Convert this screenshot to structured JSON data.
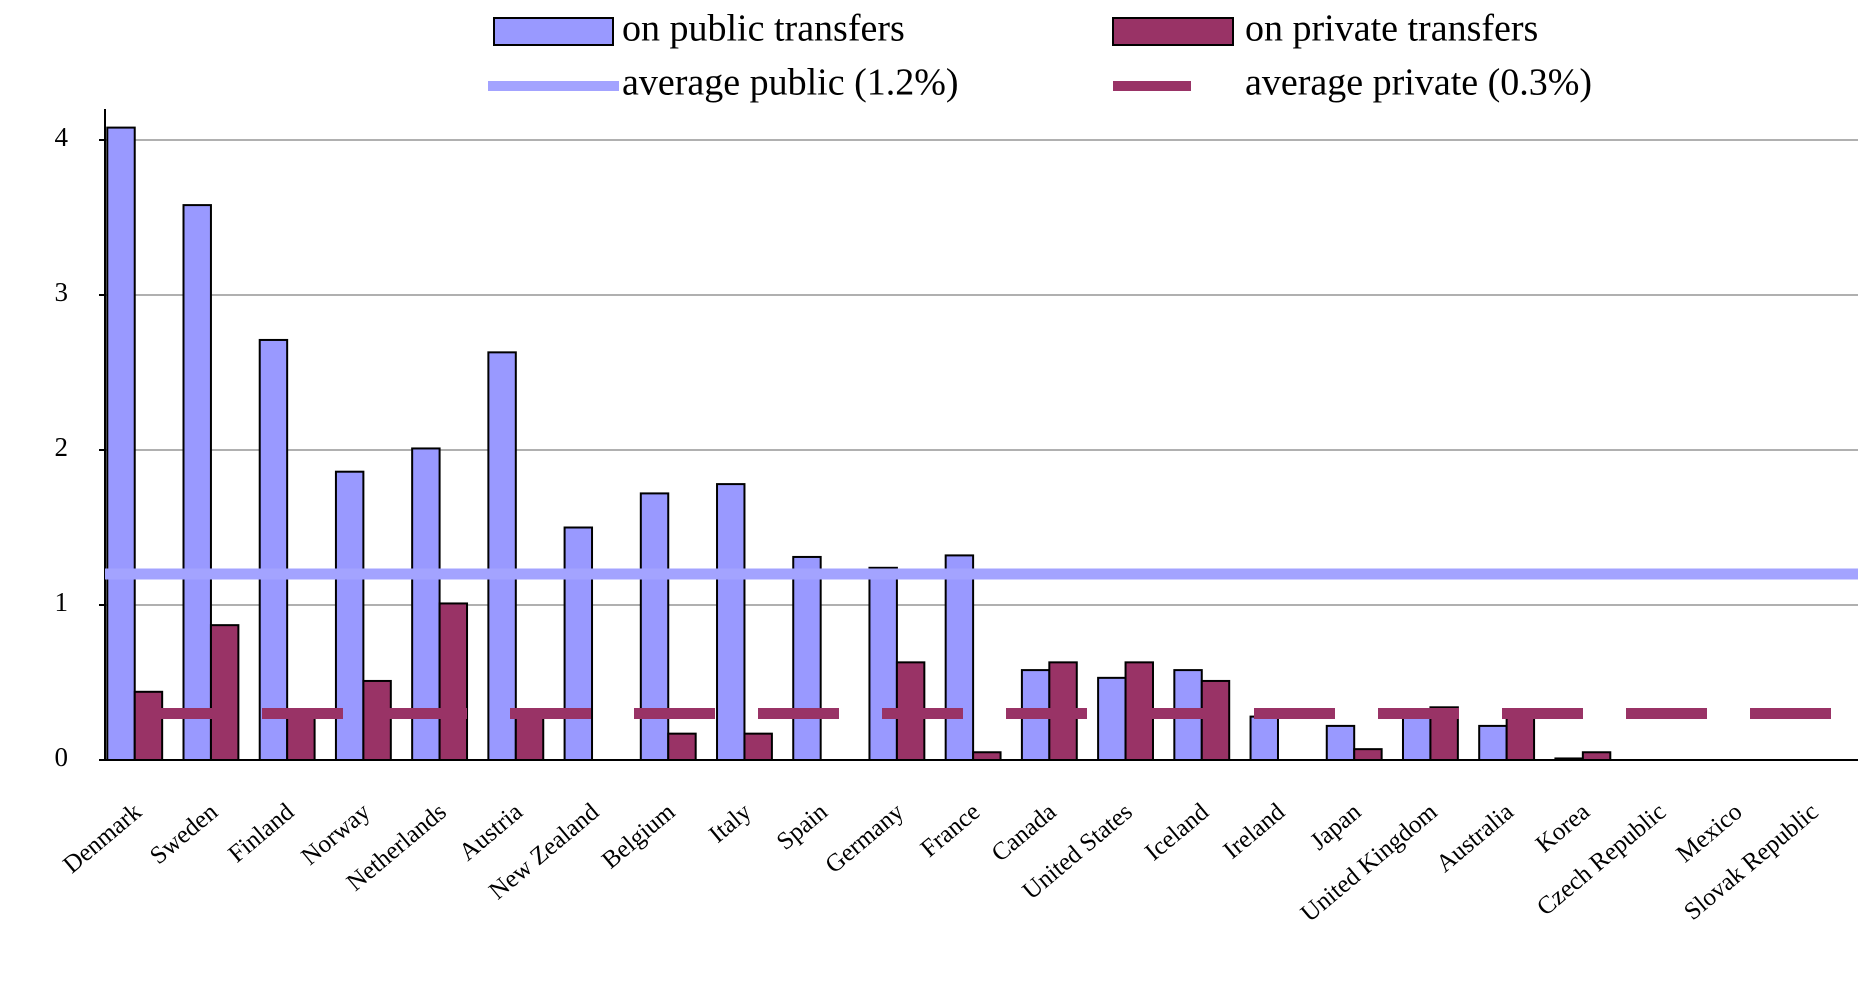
{
  "chart_data": {
    "type": "bar",
    "categories": [
      "Denmark",
      "Sweden",
      "Finland",
      "Norway",
      "Netherlands",
      "Austria",
      "New Zealand",
      "Belgium",
      "Italy",
      "Spain",
      "Germany",
      "France",
      "Canada",
      "United States",
      "Iceland",
      "Ireland",
      "Japan",
      "United Kingdom",
      "Australia",
      "Korea",
      "Czech Republic",
      "Mexico",
      "Slovak Republic"
    ],
    "series": [
      {
        "name": "on public transfers",
        "color": "#9999ff",
        "values": [
          4.08,
          3.58,
          2.71,
          1.86,
          2.01,
          2.63,
          1.5,
          1.72,
          1.78,
          1.31,
          1.24,
          1.32,
          0.58,
          0.53,
          0.58,
          0.28,
          0.22,
          0.28,
          0.22,
          0.01,
          0,
          0,
          0
        ]
      },
      {
        "name": "on private transfers",
        "color": "#993366",
        "values": [
          0.44,
          0.87,
          0.28,
          0.51,
          1.01,
          0.28,
          0,
          0.17,
          0.17,
          0,
          0.63,
          0.05,
          0.63,
          0.63,
          0.51,
          0,
          0.07,
          0.34,
          0.28,
          0.05,
          0,
          0,
          0
        ]
      }
    ],
    "reference_lines": [
      {
        "name": "average public (1.2%)",
        "value": 1.2,
        "color": "#a3a3ff",
        "style": "solid"
      },
      {
        "name": "average private (0.3%)",
        "value": 0.3,
        "color": "#993366",
        "style": "dashed"
      }
    ],
    "ylim": [
      0,
      4.2
    ],
    "yticks": [
      0,
      1,
      2,
      3,
      4
    ],
    "grid": true,
    "legend": "top"
  }
}
